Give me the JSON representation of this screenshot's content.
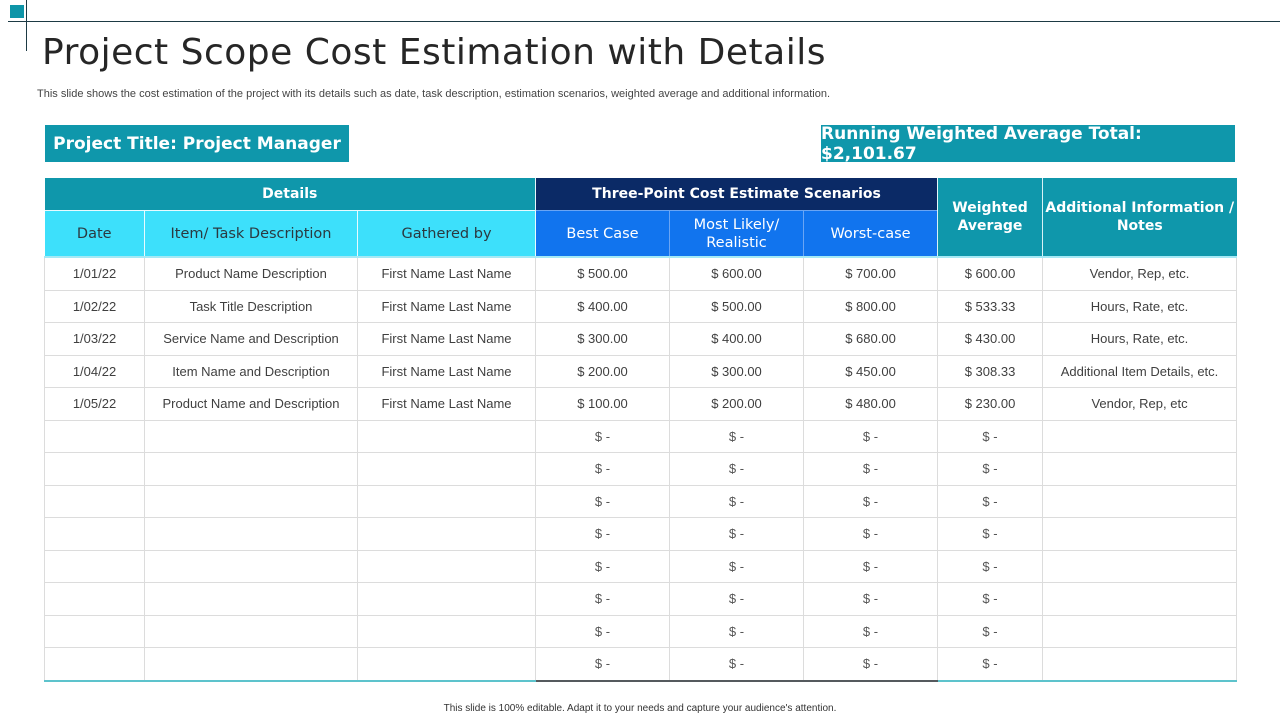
{
  "header": {
    "title": "Project Scope Cost Estimation with Details",
    "subtitle": "This slide shows the cost estimation of the project with its details such as date, task description, estimation scenarios, weighted average and additional information."
  },
  "banners": {
    "project_title": "Project Title: Project Manager",
    "running_total": "Running Weighted Average Total: $2,101.67"
  },
  "table": {
    "group_headers": {
      "details": "Details",
      "scenarios": "Three-Point Cost Estimate Scenarios",
      "weighted_average": "Weighted Average",
      "notes": "Additional Information / Notes"
    },
    "columns": [
      "Date",
      "Item/ Task Description",
      "Gathered by",
      "Best Case",
      "Most Likely/ Realistic",
      "Worst-case"
    ],
    "rows": [
      [
        "1/01/22",
        "Product Name Description",
        "First Name Last Name",
        "$ 500.00",
        "$ 600.00",
        "$ 700.00",
        "$ 600.00",
        "Vendor, Rep, etc."
      ],
      [
        "1/02/22",
        "Task Title Description",
        "First Name Last Name",
        "$ 400.00",
        "$ 500.00",
        "$ 800.00",
        "$ 533.33",
        "Hours, Rate, etc."
      ],
      [
        "1/03/22",
        "Service Name and Description",
        "First Name Last Name",
        "$ 300.00",
        "$ 400.00",
        "$ 680.00",
        "$ 430.00",
        "Hours, Rate, etc."
      ],
      [
        "1/04/22",
        "Item Name and Description",
        "First Name Last Name",
        "$ 200.00",
        "$ 300.00",
        "$ 450.00",
        "$ 308.33",
        "Additional Item Details, etc."
      ],
      [
        "1/05/22",
        "Product Name and Description",
        "First Name Last Name",
        "$ 100.00",
        "$ 200.00",
        "$ 480.00",
        "$ 230.00",
        "Vendor, Rep, etc"
      ],
      [
        "",
        "",
        "",
        "$ -",
        "$ -",
        "$ -",
        "$ -",
        ""
      ],
      [
        "",
        "",
        "",
        "$ -",
        "$ -",
        "$ -",
        "$ -",
        ""
      ],
      [
        "",
        "",
        "",
        "$ -",
        "$ -",
        "$ -",
        "$ -",
        ""
      ],
      [
        "",
        "",
        "",
        "$ -",
        "$ -",
        "$ -",
        "$ -",
        ""
      ],
      [
        "",
        "",
        "",
        "$ -",
        "$ -",
        "$ -",
        "$ -",
        ""
      ],
      [
        "",
        "",
        "",
        "$ -",
        "$ -",
        "$ -",
        "$ -",
        ""
      ],
      [
        "",
        "",
        "",
        "$ -",
        "$ -",
        "$ -",
        "$ -",
        ""
      ],
      [
        "",
        "",
        "",
        "$ -",
        "$ -",
        "$ -",
        "$ -",
        ""
      ]
    ]
  },
  "footer": {
    "note": "This slide is 100% editable. Adapt it to your needs and capture your audience's attention."
  },
  "colors": {
    "teal": "#0f97ab",
    "navy": "#0b2a66",
    "cyan": "#3de0fb",
    "blue": "#1174ee"
  }
}
